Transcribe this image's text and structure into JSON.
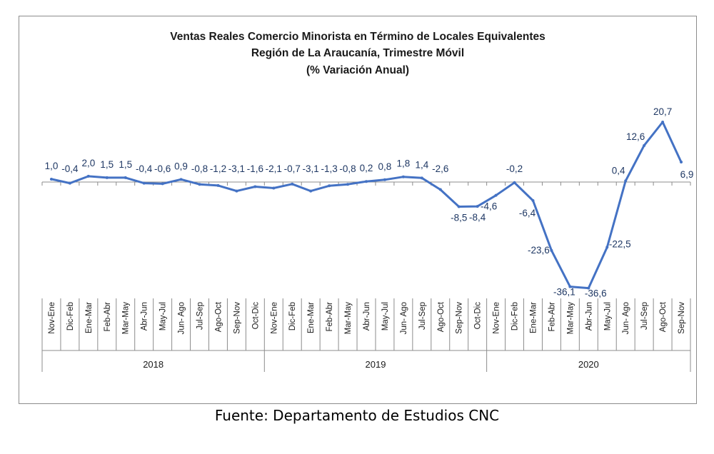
{
  "chart_data": {
    "type": "line",
    "title": [
      "Ventas Reales Comercio Minorista  en Término de Locales Equivalentes",
      "Región de La Araucanía, Trimestre Móvil",
      "(% Variación Anual)"
    ],
    "line_color": "#4472C4",
    "label_color": "#1F3864",
    "categories": [
      "Nov-Ene",
      "Dic-Feb",
      "Ene-Mar",
      "Feb-Abr",
      "Mar-May",
      "Abr-Jun",
      "May-Jul",
      "Jun- Ago",
      "Jul-Sep",
      "Ago-Oct",
      "Sep-Nov",
      "Oct-Dic",
      "Nov-Ene",
      "Dic-Feb",
      "Ene-Mar",
      "Feb-Abr",
      "Mar-May",
      "Abr-Jun",
      "May-Jul",
      "Jun- Ago",
      "Jul-Sep",
      "Ago-Oct",
      "Sep-Nov",
      "Oct-Dic",
      "Nov-Ene",
      "Dic-Feb",
      "Ene-Mar",
      "Feb-Abr",
      "Mar-May",
      "Abr-Jun",
      "May-Jul",
      "Jun- Ago",
      "Jul-Sep",
      "Ago-Oct",
      "Sep-Nov"
    ],
    "values": [
      1.0,
      -0.4,
      2.0,
      1.5,
      1.5,
      -0.4,
      -0.6,
      0.9,
      -0.8,
      -1.2,
      -3.1,
      -1.6,
      -2.1,
      -0.7,
      -3.1,
      -1.3,
      -0.8,
      0.2,
      0.8,
      1.8,
      1.4,
      -2.6,
      -8.5,
      -8.4,
      -4.6,
      -0.2,
      -6.4,
      -23.6,
      -36.1,
      -36.6,
      -22.5,
      0.4,
      12.6,
      20.7,
      6.9
    ],
    "data_labels": [
      "1,0",
      "-0,4",
      "2,0",
      "1,5",
      "1,5",
      "-0,4",
      "-0,6",
      "0,9",
      "-0,8",
      "-1,2",
      "-3,1",
      "-1,6",
      "-2,1",
      "-0,7",
      "-3,1",
      "-1,3",
      "-0,8",
      "0,2",
      "0,8",
      "1,8",
      "1,4",
      "-2,6",
      "-8,5",
      "-8,4",
      "-4,6",
      "-0,2",
      "-6,4",
      "-23,6",
      "-36,1",
      "-36,6",
      "-22,5",
      "0,4",
      "12,6",
      "20,7",
      "6,9"
    ],
    "year_groups": [
      {
        "label": "2018",
        "count": 12
      },
      {
        "label": "2019",
        "count": 12
      },
      {
        "label": "2020",
        "count": 11
      }
    ],
    "grid": false,
    "legend": "none"
  },
  "source": "Fuente: Departamento de Estudios CNC"
}
